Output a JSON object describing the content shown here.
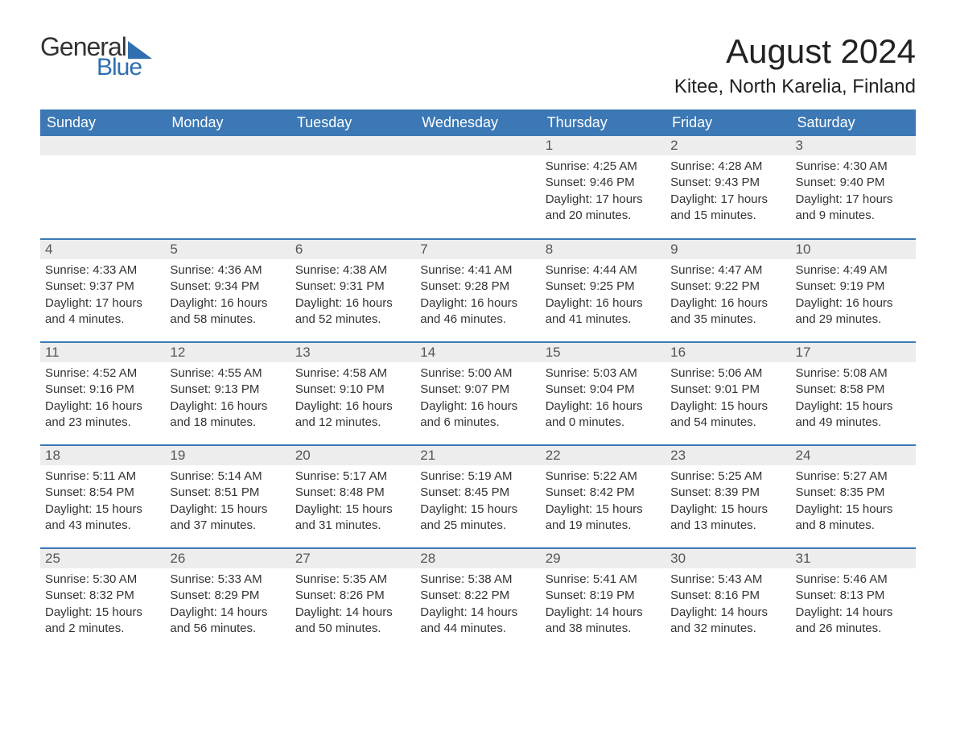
{
  "brand": {
    "part1": "General",
    "part2": "Blue"
  },
  "title": "August 2024",
  "location": "Kitee, North Karelia, Finland",
  "colors": {
    "header_bg": "#3b78b5",
    "header_text": "#ffffff",
    "daynum_bg": "#ededed",
    "border": "#3b78b5",
    "text": "#333333",
    "brand_blue": "#2f6fb0"
  },
  "days_of_week": [
    "Sunday",
    "Monday",
    "Tuesday",
    "Wednesday",
    "Thursday",
    "Friday",
    "Saturday"
  ],
  "weeks": [
    [
      null,
      null,
      null,
      null,
      {
        "n": "1",
        "sunrise": "4:25 AM",
        "sunset": "9:46 PM",
        "dh": "17",
        "dm": "20"
      },
      {
        "n": "2",
        "sunrise": "4:28 AM",
        "sunset": "9:43 PM",
        "dh": "17",
        "dm": "15"
      },
      {
        "n": "3",
        "sunrise": "4:30 AM",
        "sunset": "9:40 PM",
        "dh": "17",
        "dm": "9"
      }
    ],
    [
      {
        "n": "4",
        "sunrise": "4:33 AM",
        "sunset": "9:37 PM",
        "dh": "17",
        "dm": "4"
      },
      {
        "n": "5",
        "sunrise": "4:36 AM",
        "sunset": "9:34 PM",
        "dh": "16",
        "dm": "58"
      },
      {
        "n": "6",
        "sunrise": "4:38 AM",
        "sunset": "9:31 PM",
        "dh": "16",
        "dm": "52"
      },
      {
        "n": "7",
        "sunrise": "4:41 AM",
        "sunset": "9:28 PM",
        "dh": "16",
        "dm": "46"
      },
      {
        "n": "8",
        "sunrise": "4:44 AM",
        "sunset": "9:25 PM",
        "dh": "16",
        "dm": "41"
      },
      {
        "n": "9",
        "sunrise": "4:47 AM",
        "sunset": "9:22 PM",
        "dh": "16",
        "dm": "35"
      },
      {
        "n": "10",
        "sunrise": "4:49 AM",
        "sunset": "9:19 PM",
        "dh": "16",
        "dm": "29"
      }
    ],
    [
      {
        "n": "11",
        "sunrise": "4:52 AM",
        "sunset": "9:16 PM",
        "dh": "16",
        "dm": "23"
      },
      {
        "n": "12",
        "sunrise": "4:55 AM",
        "sunset": "9:13 PM",
        "dh": "16",
        "dm": "18"
      },
      {
        "n": "13",
        "sunrise": "4:58 AM",
        "sunset": "9:10 PM",
        "dh": "16",
        "dm": "12"
      },
      {
        "n": "14",
        "sunrise": "5:00 AM",
        "sunset": "9:07 PM",
        "dh": "16",
        "dm": "6"
      },
      {
        "n": "15",
        "sunrise": "5:03 AM",
        "sunset": "9:04 PM",
        "dh": "16",
        "dm": "0"
      },
      {
        "n": "16",
        "sunrise": "5:06 AM",
        "sunset": "9:01 PM",
        "dh": "15",
        "dm": "54"
      },
      {
        "n": "17",
        "sunrise": "5:08 AM",
        "sunset": "8:58 PM",
        "dh": "15",
        "dm": "49"
      }
    ],
    [
      {
        "n": "18",
        "sunrise": "5:11 AM",
        "sunset": "8:54 PM",
        "dh": "15",
        "dm": "43"
      },
      {
        "n": "19",
        "sunrise": "5:14 AM",
        "sunset": "8:51 PM",
        "dh": "15",
        "dm": "37"
      },
      {
        "n": "20",
        "sunrise": "5:17 AM",
        "sunset": "8:48 PM",
        "dh": "15",
        "dm": "31"
      },
      {
        "n": "21",
        "sunrise": "5:19 AM",
        "sunset": "8:45 PM",
        "dh": "15",
        "dm": "25"
      },
      {
        "n": "22",
        "sunrise": "5:22 AM",
        "sunset": "8:42 PM",
        "dh": "15",
        "dm": "19"
      },
      {
        "n": "23",
        "sunrise": "5:25 AM",
        "sunset": "8:39 PM",
        "dh": "15",
        "dm": "13"
      },
      {
        "n": "24",
        "sunrise": "5:27 AM",
        "sunset": "8:35 PM",
        "dh": "15",
        "dm": "8"
      }
    ],
    [
      {
        "n": "25",
        "sunrise": "5:30 AM",
        "sunset": "8:32 PM",
        "dh": "15",
        "dm": "2"
      },
      {
        "n": "26",
        "sunrise": "5:33 AM",
        "sunset": "8:29 PM",
        "dh": "14",
        "dm": "56"
      },
      {
        "n": "27",
        "sunrise": "5:35 AM",
        "sunset": "8:26 PM",
        "dh": "14",
        "dm": "50"
      },
      {
        "n": "28",
        "sunrise": "5:38 AM",
        "sunset": "8:22 PM",
        "dh": "14",
        "dm": "44"
      },
      {
        "n": "29",
        "sunrise": "5:41 AM",
        "sunset": "8:19 PM",
        "dh": "14",
        "dm": "38"
      },
      {
        "n": "30",
        "sunrise": "5:43 AM",
        "sunset": "8:16 PM",
        "dh": "14",
        "dm": "32"
      },
      {
        "n": "31",
        "sunrise": "5:46 AM",
        "sunset": "8:13 PM",
        "dh": "14",
        "dm": "26"
      }
    ]
  ],
  "labels": {
    "sunrise": "Sunrise:",
    "sunset": "Sunset:",
    "daylight": "Daylight:",
    "hours": "hours",
    "and": "and",
    "minutes": "minutes."
  }
}
